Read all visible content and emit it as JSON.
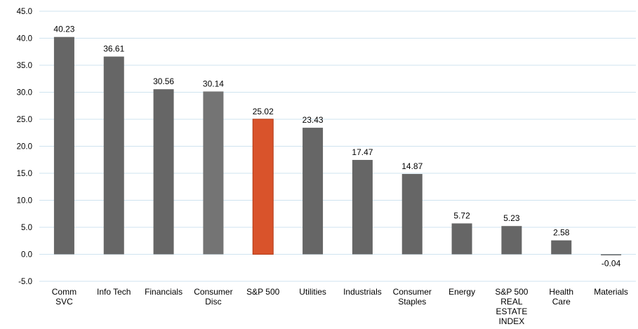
{
  "chart_data": {
    "type": "bar",
    "categories": [
      "Comm SVC",
      "Info Tech",
      "Financials",
      "Consumer Disc",
      "S&P 500",
      "Utilities",
      "Industrials",
      "Consumer Staples",
      "Energy",
      "S&P 500 REAL ESTATE INDEX",
      "Health Care",
      "Materials"
    ],
    "category_lines": [
      [
        "Comm",
        "SVC"
      ],
      [
        "Info Tech"
      ],
      [
        "Financials"
      ],
      [
        "Consumer",
        "Disc"
      ],
      [
        "S&P 500"
      ],
      [
        "Utilities"
      ],
      [
        "Industrials"
      ],
      [
        "Consumer",
        "Staples"
      ],
      [
        "Energy"
      ],
      [
        "S&P 500",
        "REAL",
        "ESTATE",
        "INDEX"
      ],
      [
        "Health",
        "Care"
      ],
      [
        "Materials"
      ]
    ],
    "values": [
      40.23,
      36.61,
      30.56,
      30.14,
      25.02,
      23.43,
      17.47,
      14.87,
      5.72,
      5.23,
      2.58,
      -0.04
    ],
    "data_labels": [
      "40.23",
      "36.61",
      "30.56",
      "30.14",
      "25.02",
      "23.43",
      "17.47",
      "14.87",
      "5.72",
      "5.23",
      "2.58",
      "-0.04"
    ],
    "bar_colors": [
      "#666666",
      "#666666",
      "#666666",
      "#747474",
      "#d9532b",
      "#666666",
      "#666666",
      "#666666",
      "#666666",
      "#666666",
      "#666666",
      "#666666"
    ],
    "title": "",
    "xlabel": "",
    "ylabel": "",
    "ylim": [
      -5,
      45
    ],
    "yticks": [
      "45.0",
      "40.0",
      "35.0",
      "30.0",
      "25.0",
      "20.0",
      "15.0",
      "10.0",
      "5.0",
      "0.0",
      "-5.0"
    ],
    "ytick_values": [
      45,
      40,
      35,
      30,
      25,
      20,
      15,
      10,
      5,
      0,
      -5
    ],
    "grid": true,
    "grid_color": "#cfe3ef",
    "legend": "none"
  }
}
